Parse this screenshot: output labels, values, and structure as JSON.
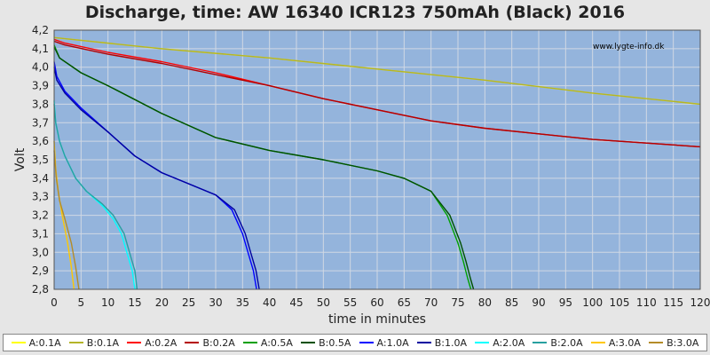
{
  "chart_data": {
    "type": "line",
    "title": "Discharge, time: AW 16340 ICR123 750mAh (Black) 2016",
    "watermark": "www.lygte-info.dk",
    "xlabel": "time in minutes",
    "ylabel": "Volt",
    "xlim": [
      0,
      120
    ],
    "ylim": [
      2.8,
      4.2
    ],
    "xticks": [
      "0",
      "5",
      "10",
      "15",
      "20",
      "25",
      "30",
      "35",
      "40",
      "45",
      "50",
      "55",
      "60",
      "65",
      "70",
      "75",
      "80",
      "85",
      "90",
      "95",
      "100",
      "105",
      "110",
      "115",
      "120"
    ],
    "yticks": [
      "2,8",
      "2,9",
      "3,0",
      "3,1",
      "3,2",
      "3,3",
      "3,4",
      "3,5",
      "3,6",
      "3,7",
      "3,8",
      "3,9",
      "4,0",
      "4,1",
      "4,2"
    ],
    "grid": true,
    "plot_background": "#94b4dc",
    "legend_position": "bottom",
    "series": [
      {
        "name": "A:0.1A",
        "color": "#ffff00",
        "x": [
          0,
          20,
          40,
          60,
          80,
          100,
          120
        ],
        "y": [
          4.16,
          4.1,
          4.05,
          3.99,
          3.93,
          3.86,
          3.8
        ]
      },
      {
        "name": "B:0.1A",
        "color": "#b4b428",
        "x": [
          0,
          20,
          40,
          60,
          80,
          100,
          120
        ],
        "y": [
          4.16,
          4.1,
          4.05,
          3.99,
          3.93,
          3.86,
          3.8
        ]
      },
      {
        "name": "A:0.2A",
        "color": "#ff0000",
        "x": [
          0,
          2,
          10,
          20,
          30,
          40,
          50,
          60,
          70,
          80,
          90,
          100,
          110,
          120
        ],
        "y": [
          4.15,
          4.13,
          4.08,
          4.03,
          3.97,
          3.9,
          3.83,
          3.77,
          3.71,
          3.67,
          3.64,
          3.61,
          3.59,
          3.57
        ]
      },
      {
        "name": "B:0.2A",
        "color": "#b40000",
        "x": [
          0,
          2,
          10,
          20,
          30,
          40,
          50,
          60,
          70,
          80,
          90,
          100,
          110,
          120
        ],
        "y": [
          4.14,
          4.12,
          4.07,
          4.02,
          3.96,
          3.9,
          3.83,
          3.77,
          3.71,
          3.67,
          3.64,
          3.61,
          3.59,
          3.57
        ]
      },
      {
        "name": "A:0.5A",
        "color": "#00a000",
        "x": [
          0,
          1,
          5,
          10,
          20,
          30,
          40,
          50,
          60,
          65,
          70,
          73,
          75,
          76,
          76.8,
          77.4
        ],
        "y": [
          4.12,
          4.05,
          3.97,
          3.9,
          3.75,
          3.62,
          3.55,
          3.5,
          3.44,
          3.4,
          3.33,
          3.2,
          3.05,
          2.95,
          2.86,
          2.8
        ]
      },
      {
        "name": "B:0.5A",
        "color": "#005000",
        "x": [
          0,
          1,
          5,
          10,
          20,
          30,
          40,
          50,
          60,
          65,
          70,
          73.5,
          75.5,
          76.5,
          77.3,
          77.9
        ],
        "y": [
          4.11,
          4.05,
          3.97,
          3.9,
          3.75,
          3.62,
          3.55,
          3.5,
          3.44,
          3.4,
          3.33,
          3.2,
          3.05,
          2.95,
          2.86,
          2.8
        ]
      },
      {
        "name": "A:1.0A",
        "color": "#0000ff",
        "x": [
          0,
          0.5,
          2,
          5,
          10,
          15,
          20,
          25,
          30,
          33,
          35,
          36,
          37,
          37.6
        ],
        "y": [
          4.03,
          3.95,
          3.87,
          3.78,
          3.65,
          3.52,
          3.43,
          3.37,
          3.31,
          3.23,
          3.1,
          3.0,
          2.9,
          2.8
        ]
      },
      {
        "name": "B:1.0A",
        "color": "#0000a0",
        "x": [
          0,
          0.5,
          2,
          5,
          10,
          15,
          20,
          25,
          30,
          33.5,
          35.5,
          36.5,
          37.5,
          38.1
        ],
        "y": [
          4.0,
          3.93,
          3.86,
          3.77,
          3.65,
          3.52,
          3.43,
          3.37,
          3.31,
          3.23,
          3.1,
          3.0,
          2.9,
          2.8
        ]
      },
      {
        "name": "A:2.0A",
        "color": "#00ffff",
        "x": [
          0,
          0.3,
          1,
          2,
          4,
          6,
          9,
          11,
          12.5,
          13.5,
          14.5,
          15.0
        ],
        "y": [
          3.82,
          3.7,
          3.6,
          3.52,
          3.4,
          3.33,
          3.25,
          3.18,
          3.1,
          3.0,
          2.9,
          2.8
        ]
      },
      {
        "name": "B:2.0A",
        "color": "#28a0a0",
        "x": [
          0,
          0.3,
          1,
          2,
          4,
          6,
          9,
          11,
          13,
          14,
          15,
          15.4
        ],
        "y": [
          3.8,
          3.7,
          3.6,
          3.52,
          3.4,
          3.33,
          3.26,
          3.2,
          3.1,
          3.0,
          2.9,
          2.8
        ]
      },
      {
        "name": "A:3.0A",
        "color": "#ffc800",
        "x": [
          0,
          0.3,
          0.8,
          1.5,
          2.5,
          3.2,
          3.7
        ],
        "y": [
          3.6,
          3.45,
          3.32,
          3.2,
          3.05,
          2.92,
          2.8
        ]
      },
      {
        "name": "B:3.0A",
        "color": "#b48c28",
        "x": [
          0,
          0.4,
          1.0,
          2.0,
          3.2,
          4.0,
          4.6
        ],
        "y": [
          3.55,
          3.4,
          3.28,
          3.18,
          3.05,
          2.92,
          2.8
        ]
      }
    ]
  }
}
